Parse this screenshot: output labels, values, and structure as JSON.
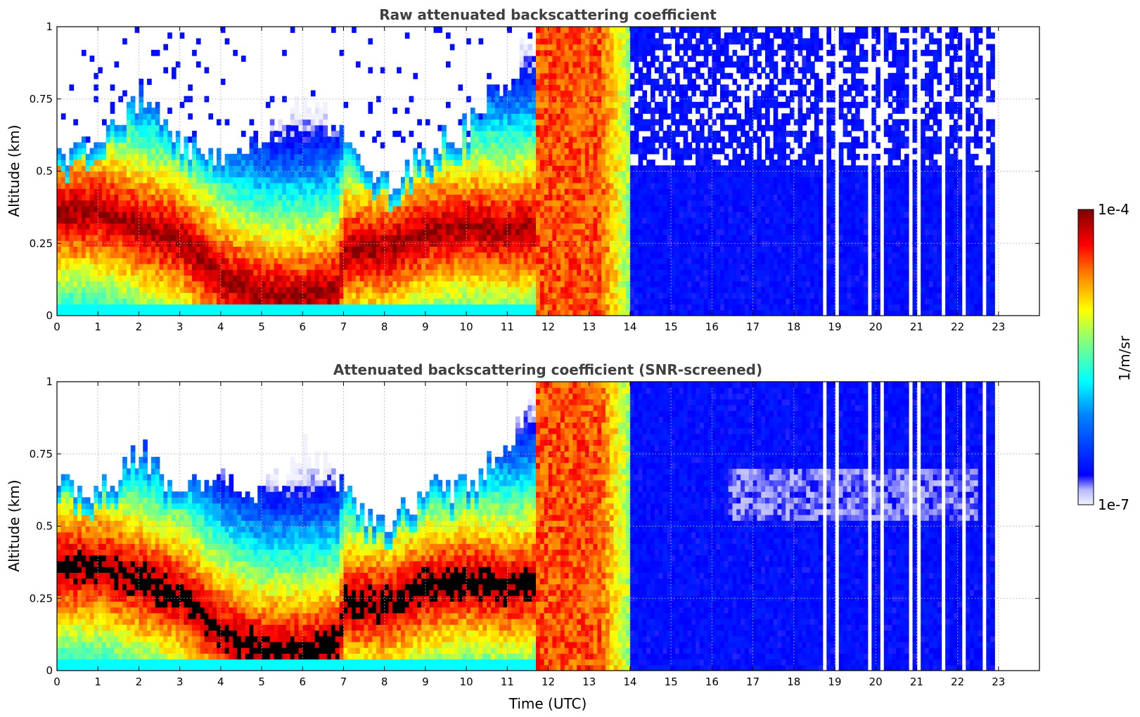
{
  "chart_data": [
    {
      "type": "heatmap",
      "title": "Raw attenuated backscattering coefficient",
      "xlabel": "",
      "ylabel": "Altitude (km)",
      "xlim": [
        0,
        24
      ],
      "ylim": [
        0,
        1
      ],
      "x_ticks": [
        "0",
        "1",
        "2",
        "3",
        "4",
        "5",
        "6",
        "7",
        "8",
        "9",
        "10",
        "11",
        "12",
        "13",
        "14",
        "15",
        "16",
        "17",
        "18",
        "19",
        "20",
        "21",
        "22",
        "23"
      ],
      "y_ticks": [
        {
          "value": 0,
          "label": "0"
        },
        {
          "value": 0.25,
          "label": "0.25"
        },
        {
          "value": 0.5,
          "label": "0.5"
        },
        {
          "value": 0.75,
          "label": "0.75"
        },
        {
          "value": 1,
          "label": "1"
        }
      ],
      "grid": true,
      "screened": false,
      "boundary_layer_top_km": [
        [
          0,
          0.55
        ],
        [
          1,
          0.6
        ],
        [
          2,
          0.75
        ],
        [
          3,
          0.6
        ],
        [
          4,
          0.55
        ],
        [
          5,
          0.6
        ],
        [
          6,
          0.75
        ],
        [
          7,
          0.6
        ],
        [
          8,
          0.45
        ],
        [
          9,
          0.55
        ],
        [
          10,
          0.65
        ],
        [
          11,
          0.8
        ],
        [
          11.7,
          1.0
        ],
        [
          14,
          1.0
        ]
      ],
      "aerosol_core_km": [
        [
          0,
          0.35
        ],
        [
          1,
          0.35
        ],
        [
          2,
          0.3
        ],
        [
          3,
          0.25
        ],
        [
          4,
          0.12
        ],
        [
          5,
          0.06
        ],
        [
          6,
          0.06
        ],
        [
          6.8,
          0.08
        ],
        [
          7,
          0.22
        ],
        [
          8,
          0.22
        ],
        [
          9,
          0.28
        ],
        [
          10,
          0.3
        ],
        [
          11,
          0.28
        ],
        [
          11.7,
          0.3
        ]
      ],
      "high_signal_period_utc": [
        11.7,
        14.0
      ],
      "low_signal_period_utc": [
        14.0,
        23.0
      ],
      "data_gaps_utc": [
        18.7,
        19.0,
        19.8,
        20.1,
        20.8,
        21.0,
        21.6,
        22.1,
        22.6,
        22.95
      ]
    },
    {
      "type": "heatmap",
      "title": "Attenuated backscattering coefficient (SNR-screened)",
      "xlabel": "Time (UTC)",
      "ylabel": "Altitude (km)",
      "xlim": [
        0,
        24
      ],
      "ylim": [
        0,
        1
      ],
      "x_ticks": [
        "0",
        "1",
        "2",
        "3",
        "4",
        "5",
        "6",
        "7",
        "8",
        "9",
        "10",
        "11",
        "12",
        "13",
        "14",
        "15",
        "16",
        "17",
        "18",
        "19",
        "20",
        "21",
        "22",
        "23"
      ],
      "y_ticks": [
        {
          "value": 0,
          "label": "0"
        },
        {
          "value": 0.25,
          "label": "0.25"
        },
        {
          "value": 0.5,
          "label": "0.5"
        },
        {
          "value": 0.75,
          "label": "0.75"
        },
        {
          "value": 1,
          "label": "1"
        }
      ],
      "grid": true,
      "screened": true,
      "boundary_layer_top_km": [
        [
          0,
          0.65
        ],
        [
          1,
          0.6
        ],
        [
          2,
          0.75
        ],
        [
          3,
          0.6
        ],
        [
          4,
          0.65
        ],
        [
          5,
          0.6
        ],
        [
          6,
          0.77
        ],
        [
          7,
          0.6
        ],
        [
          8,
          0.48
        ],
        [
          9,
          0.6
        ],
        [
          10,
          0.62
        ],
        [
          11,
          0.8
        ],
        [
          11.7,
          1.0
        ],
        [
          14,
          1.0
        ]
      ],
      "aerosol_core_km": [
        [
          0,
          0.35
        ],
        [
          1,
          0.35
        ],
        [
          2,
          0.3
        ],
        [
          3,
          0.25
        ],
        [
          4,
          0.12
        ],
        [
          5,
          0.06
        ],
        [
          6,
          0.06
        ],
        [
          6.8,
          0.08
        ],
        [
          7,
          0.22
        ],
        [
          8,
          0.22
        ],
        [
          9,
          0.28
        ],
        [
          10,
          0.3
        ],
        [
          11,
          0.28
        ],
        [
          11.7,
          0.3
        ]
      ],
      "high_signal_period_utc": [
        11.7,
        14.0
      ],
      "low_signal_period_utc": [
        14.0,
        23.0
      ],
      "data_gaps_utc": [
        18.7,
        19.0,
        19.8,
        20.1,
        20.8,
        21.0,
        21.6,
        22.1,
        22.6,
        22.95
      ]
    }
  ],
  "colorbar": {
    "min_label": "1e-7",
    "max_label": "1e-4",
    "label": "1/m/sr",
    "scale": "log",
    "colormap": "jet"
  }
}
